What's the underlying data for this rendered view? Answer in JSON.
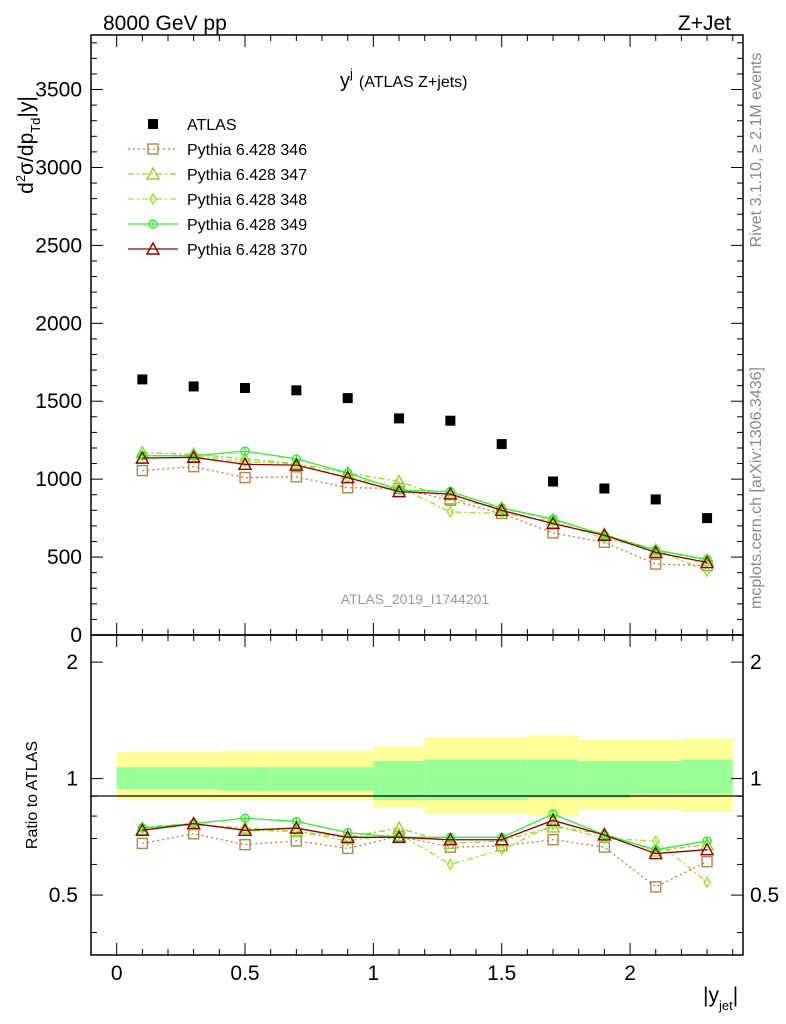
{
  "header": {
    "left_label": "8000 GeV pp",
    "right_label": "Z+Jet"
  },
  "side_labels": {
    "rivet": "Rivet 3.1.10, ≥ 2.1M events",
    "mcplots": "mcplots.cern.ch [arXiv:1306.3436]"
  },
  "chart_data": {
    "type": "scatter",
    "title": "(ATLAS Z+jets)",
    "title_var": "y",
    "title_var_sup": "j",
    "analysis_label": "ATLAS_2019_I1744201",
    "xlabel": "|y",
    "xlabel_sub": "jet",
    "xlabel_end": "|",
    "ylabel_parts": [
      "d",
      "2",
      "σ/dp",
      "Td",
      "|y|"
    ],
    "ratio_ylabel": "Ratio to ATLAS",
    "xlim": [
      -0.1,
      2.44
    ],
    "ylim": [
      0,
      3850
    ],
    "ratio_ylim": [
      0.35,
      2.35
    ],
    "x_ticks": [
      "0",
      "0.5",
      "1",
      "1.5",
      "2"
    ],
    "x_tick_values": [
      0,
      0.5,
      1,
      1.5,
      2
    ],
    "y_ticks": [
      "0",
      "500",
      "1000",
      "1500",
      "2000",
      "2500",
      "3000",
      "3500"
    ],
    "y_tick_values": [
      0,
      500,
      1000,
      1500,
      2000,
      2500,
      3000,
      3500
    ],
    "ratio_ticks": [
      "0.5",
      "1",
      "2"
    ],
    "ratio_tick_values": [
      0.5,
      1,
      2
    ],
    "x": [
      0.1,
      0.3,
      0.5,
      0.7,
      0.9,
      1.1,
      1.3,
      1.5,
      1.7,
      1.9,
      2.1,
      2.3
    ],
    "bin_edges": [
      0.0,
      0.2,
      0.4,
      0.6,
      0.8,
      1.0,
      1.2,
      1.4,
      1.6,
      1.8,
      2.0,
      2.2,
      2.4
    ],
    "data": {
      "name": "ATLAS",
      "values": [
        1640,
        1595,
        1585,
        1570,
        1520,
        1390,
        1375,
        1225,
        985,
        940,
        870,
        750
      ]
    },
    "band_inner": [
      [
        0.94,
        1.07
      ],
      [
        0.94,
        1.07
      ],
      [
        0.93,
        1.07
      ],
      [
        0.93,
        1.07
      ],
      [
        0.93,
        1.07
      ],
      [
        0.88,
        1.11
      ],
      [
        0.88,
        1.12
      ],
      [
        0.88,
        1.12
      ],
      [
        0.89,
        1.12
      ],
      [
        0.89,
        1.11
      ],
      [
        0.91,
        1.11
      ],
      [
        0.91,
        1.12
      ]
    ],
    "band_outer": [
      [
        0.88,
        1.17
      ],
      [
        0.88,
        1.17
      ],
      [
        0.88,
        1.18
      ],
      [
        0.88,
        1.18
      ],
      [
        0.88,
        1.18
      ],
      [
        0.84,
        1.21
      ],
      [
        0.81,
        1.28
      ],
      [
        0.81,
        1.28
      ],
      [
        0.8,
        1.29
      ],
      [
        0.83,
        1.26
      ],
      [
        0.83,
        1.26
      ],
      [
        0.82,
        1.27
      ]
    ],
    "series": [
      {
        "name": "Pythia 6.428 346",
        "color": "#b5844a",
        "marker": "square",
        "dash": "2,3",
        "values": [
          1055,
          1080,
          1010,
          1015,
          945,
          940,
          865,
          780,
          655,
          595,
          455,
          445
        ],
        "ratio": [
          0.68,
          0.72,
          0.675,
          0.69,
          0.66,
          0.71,
          0.665,
          0.67,
          0.695,
          0.665,
          0.525,
          0.61
        ]
      },
      {
        "name": "Pythia 6.428 347",
        "color": "#9acd32",
        "marker": "triangle",
        "dash": "6,3,2,3",
        "values": [
          1170,
          1160,
          1130,
          1100,
          1040,
          985,
          875,
          815,
          740,
          645,
          545,
          480
        ],
        "ratio": [
          0.74,
          0.76,
          0.745,
          0.73,
          0.705,
          0.745,
          0.68,
          0.69,
          0.75,
          0.72,
          0.65,
          0.675
        ]
      },
      {
        "name": "Pythia 6.428 348",
        "color": "#99e62e",
        "marker": "diamond",
        "dash": "6,3,2,3",
        "values": [
          1150,
          1150,
          1110,
          1100,
          1010,
          950,
          790,
          780,
          730,
          620,
          550,
          410
        ],
        "ratio": [
          0.75,
          0.765,
          0.735,
          0.73,
          0.69,
          0.72,
          0.6,
          0.655,
          0.76,
          0.7,
          0.69,
          0.54
        ]
      },
      {
        "name": "Pythia 6.428 349",
        "color": "#33ee33",
        "marker": "circle",
        "dash": "",
        "values": [
          1150,
          1150,
          1180,
          1130,
          1040,
          930,
          920,
          815,
          745,
          640,
          545,
          485
        ],
        "ratio": [
          0.745,
          0.765,
          0.79,
          0.775,
          0.725,
          0.705,
          0.705,
          0.705,
          0.81,
          0.715,
          0.655,
          0.69
        ]
      },
      {
        "name": "Pythia 6.428 370",
        "color": "#8b0000",
        "marker": "triangle",
        "dash": "",
        "values": [
          1135,
          1140,
          1095,
          1090,
          1010,
          920,
          905,
          800,
          715,
          640,
          530,
          465
        ],
        "ratio": [
          0.735,
          0.765,
          0.735,
          0.745,
          0.705,
          0.705,
          0.695,
          0.695,
          0.78,
          0.715,
          0.64,
          0.655
        ]
      }
    ]
  }
}
